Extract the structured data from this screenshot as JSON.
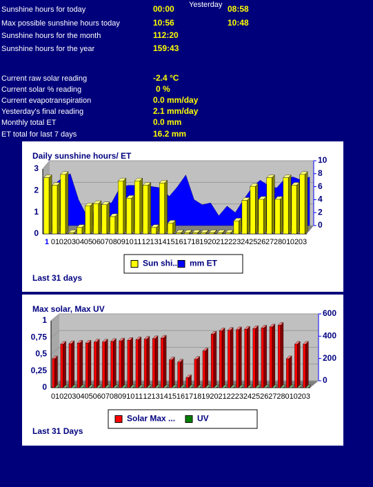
{
  "info": {
    "yesterday_heading": "Yesterday",
    "rows": [
      {
        "label": "Sunshine hours for today",
        "value": "00:00",
        "yesterday": "08:58"
      },
      {
        "label": "Max possible sunshine hours today",
        "value": "10:56",
        "yesterday": "10:48"
      },
      {
        "label": "Sunshine hours for the month",
        "value": "112:20"
      },
      {
        "label": "Sunshine hours for the year",
        "value": "159:43"
      },
      {
        "label": "Current raw solar reading",
        "value": "-2.4 °C"
      },
      {
        "label": "Current solar % reading",
        "value": "0 %"
      },
      {
        "label": "Current evapotranspiration",
        "value": "0.0 mm/day"
      },
      {
        "label": "Yesterday's final reading",
        "value": "2.1 mm/day"
      },
      {
        "label": "Monthly total ET",
        "value": "0.0 mm"
      },
      {
        "label": "ET total for last 7 days",
        "value": "16.2 mm"
      }
    ]
  },
  "chart_data": [
    {
      "type": "bar",
      "title": "Daily sunshine hours/ ET",
      "footer": "Last 31 days",
      "categories": [
        "1",
        "01",
        "02",
        "03",
        "04",
        "05",
        "06",
        "07",
        "08",
        "09",
        "10",
        "11",
        "12",
        "13",
        "14",
        "15",
        "16",
        "17",
        "18",
        "19",
        "20",
        "21",
        "22",
        "23",
        "24",
        "25",
        "26",
        "27",
        "28",
        "01",
        "02",
        "03"
      ],
      "series": [
        {
          "name": "Sun shi...",
          "color": "#ffff00",
          "values": [
            2.6,
            2.25,
            2.75,
            0.05,
            0.3,
            1.3,
            1.4,
            1.35,
            0.8,
            2.45,
            1.65,
            2.45,
            2.25,
            0.3,
            2.35,
            0.5,
            0.05,
            0.05,
            0.05,
            0.05,
            0.05,
            0.05,
            0.05,
            0.6,
            1.55,
            2.2,
            1.6,
            2.6,
            1.6,
            2.6,
            2.25,
            2.75
          ]
        },
        {
          "name": "mm ET",
          "color": "#0000ff",
          "type": "area",
          "axis": "y2",
          "values": [
            6.3,
            7.3,
            8,
            4,
            1.5,
            2.2,
            3.5,
            3.5,
            5.8,
            6.2,
            6.2,
            6.2,
            6,
            5.8,
            4.5,
            6,
            7.8,
            4,
            3.2,
            3.5,
            1.5,
            3,
            2,
            4,
            5.8,
            7,
            6.2,
            5.8,
            7.2,
            7.5,
            7,
            7.5
          ]
        }
      ],
      "ylim": [
        0,
        3
      ],
      "yticks": [
        0,
        1,
        2,
        3
      ],
      "y2lim": [
        0,
        10
      ],
      "y2ticks": [
        0,
        2,
        4,
        6,
        8,
        10
      ],
      "grid": true
    },
    {
      "type": "bar",
      "title": "Max solar, Max UV",
      "footer": "Last 31 Days",
      "categories": [
        "01",
        "02",
        "03",
        "04",
        "05",
        "06",
        "07",
        "08",
        "09",
        "10",
        "11",
        "12",
        "13",
        "14",
        "15",
        "16",
        "17",
        "18",
        "19",
        "20",
        "21",
        "22",
        "23",
        "24",
        "25",
        "26",
        "27",
        "28",
        "01",
        "02",
        "03"
      ],
      "series": [
        {
          "name": "Solar Max ...",
          "color": "#ff0000",
          "axis": "y2",
          "values": [
            260,
            390,
            395,
            400,
            400,
            410,
            410,
            415,
            420,
            425,
            430,
            435,
            440,
            445,
            250,
            230,
            90,
            255,
            330,
            480,
            510,
            515,
            520,
            525,
            530,
            535,
            545,
            560,
            260,
            390,
            390
          ]
        },
        {
          "name": "UV",
          "color": "#008000",
          "values": [
            0,
            0,
            0,
            0,
            0,
            0,
            0,
            0,
            0,
            0,
            0,
            0,
            0,
            0,
            0,
            0,
            0,
            0,
            0,
            0,
            0,
            0,
            0,
            0,
            0,
            0,
            0,
            0,
            0,
            0,
            0
          ]
        }
      ],
      "ylim": [
        0,
        1
      ],
      "yticks": [
        0,
        {
          "value": 0.25,
          "label": "0,25"
        },
        {
          "value": 0.5,
          "label": "0,5"
        },
        {
          "value": 0.75,
          "label": "0,75"
        },
        1
      ],
      "y2lim": [
        0,
        600
      ],
      "y2ticks": [
        0,
        200,
        400,
        600
      ],
      "grid": true
    }
  ]
}
